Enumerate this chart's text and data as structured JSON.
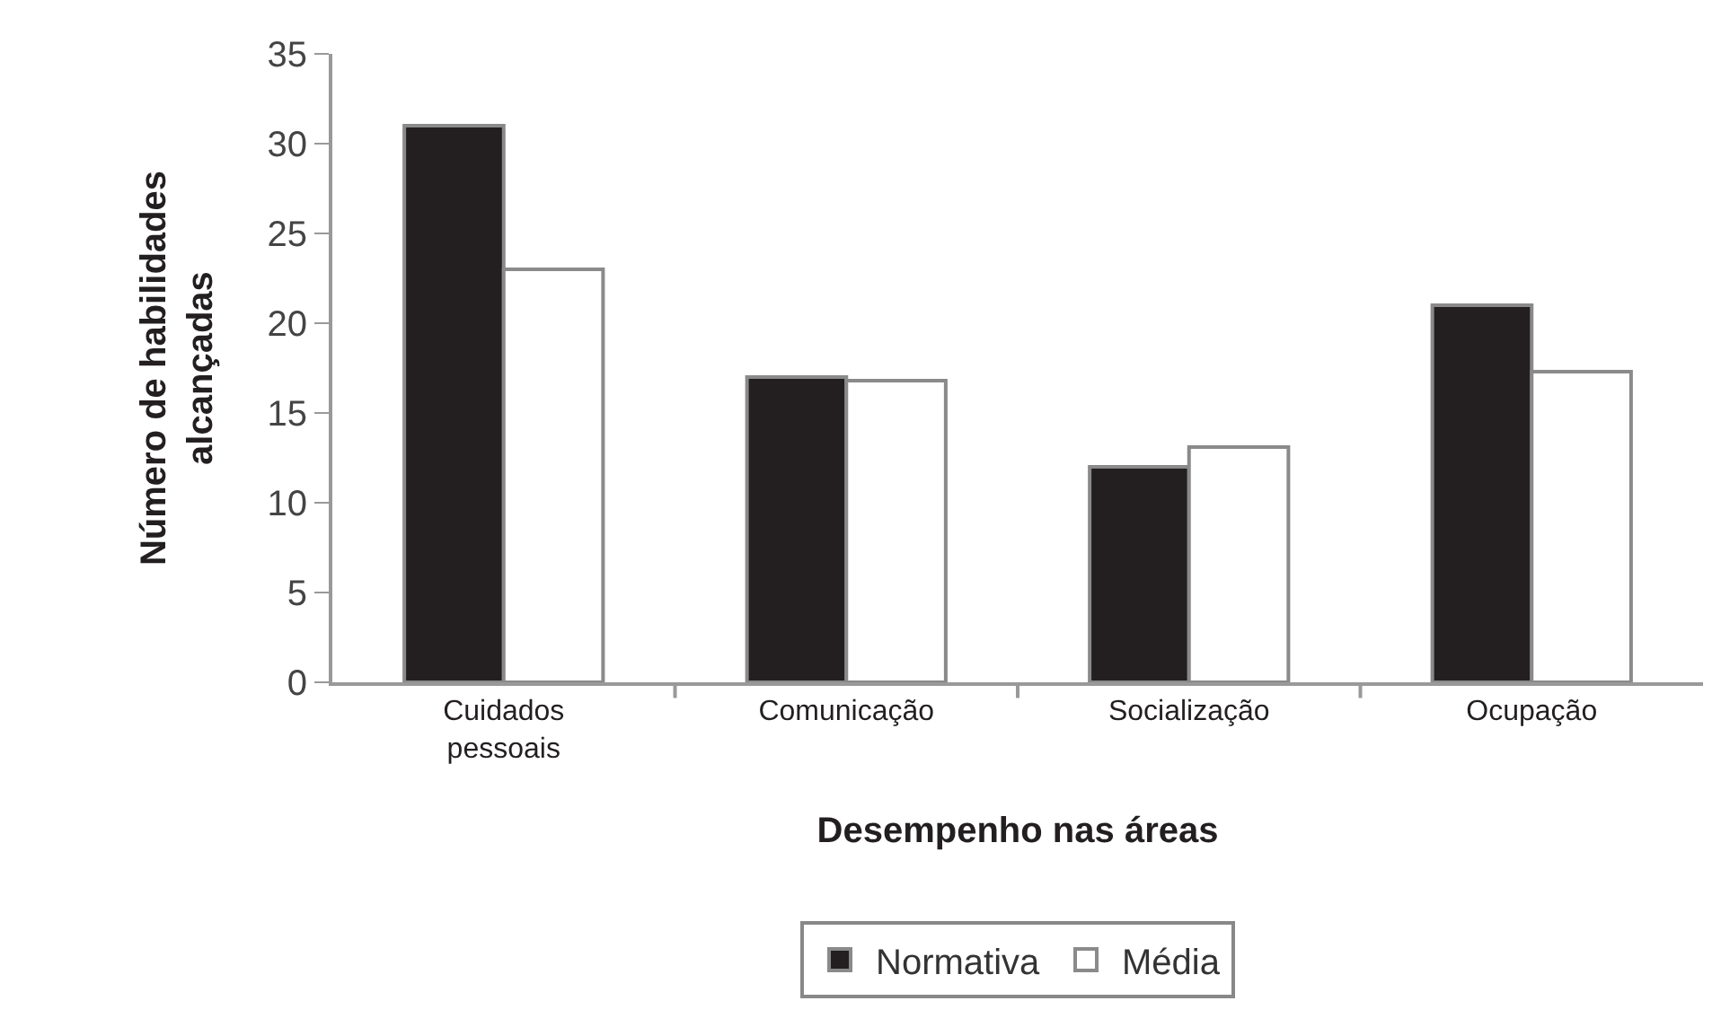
{
  "chart_data": {
    "type": "bar",
    "xlabel": "Desempenho nas áreas",
    "ylabel": "Número de habilidades alcançadas",
    "categories": [
      "Cuidados pessoais",
      "Comunicação",
      "Socialização",
      "Ocupação"
    ],
    "series": [
      {
        "name": "Normativa",
        "color": "#231f20",
        "values": [
          31,
          17,
          12,
          21
        ]
      },
      {
        "name": "Média",
        "color": "#ffffff",
        "values": [
          23,
          16.8,
          13.1,
          17.3
        ]
      }
    ],
    "ylim": [
      0,
      35
    ],
    "yticks": [
      0,
      5,
      10,
      15,
      20,
      25,
      30,
      35
    ],
    "grid": false,
    "legend": "bottom"
  }
}
